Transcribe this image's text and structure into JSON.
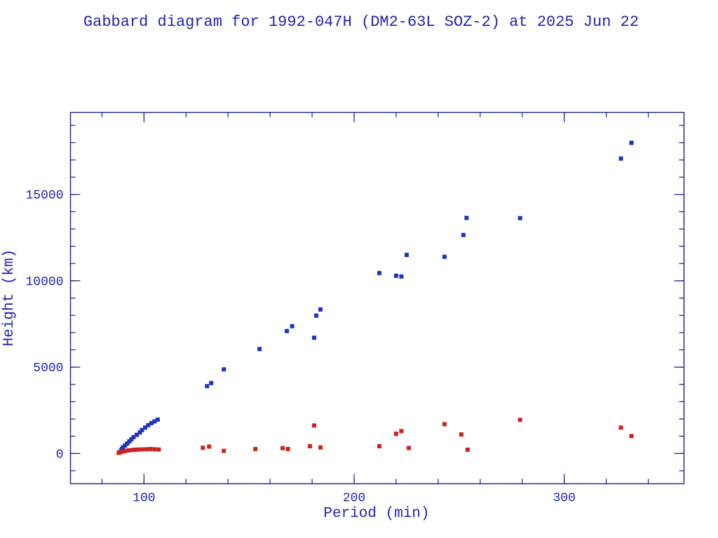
{
  "colors": {
    "background": "#ffffff",
    "text": "#2323ae",
    "axis": "#1a1a8c",
    "apogee": "#2233bb",
    "perigee": "#cc2222"
  },
  "chart_data": {
    "type": "scatter",
    "title": "Gabbard diagram for 1992-047H (DM2-63L SOZ-2) at 2025 Jun 22",
    "xlabel": "Period (min)",
    "ylabel": "Height (km)",
    "xlim": [
      65,
      357
    ],
    "ylim": [
      -1750,
      19750
    ],
    "x_major_ticks": [
      100,
      200,
      300
    ],
    "x_minor_step": 20,
    "y_major_ticks": [
      0,
      5000,
      10000,
      15000
    ],
    "y_minor_step": 1000,
    "grid": false,
    "legend": "none",
    "marker": "square",
    "series": [
      {
        "name": "apogee",
        "color": "#2233bb",
        "points": [
          [
            88,
            60
          ],
          [
            89,
            160
          ],
          [
            89.5,
            260
          ],
          [
            90,
            360
          ],
          [
            91,
            470
          ],
          [
            92,
            580
          ],
          [
            93,
            700
          ],
          [
            94,
            820
          ],
          [
            95,
            950
          ],
          [
            96.5,
            1080
          ],
          [
            98,
            1220
          ],
          [
            99,
            1360
          ],
          [
            100.5,
            1500
          ],
          [
            102,
            1640
          ],
          [
            103.5,
            1760
          ],
          [
            105,
            1860
          ],
          [
            106.5,
            1960
          ],
          [
            130,
            3900
          ],
          [
            132,
            4080
          ],
          [
            138,
            4870
          ],
          [
            155,
            6050
          ],
          [
            168,
            7090
          ],
          [
            170.5,
            7370
          ],
          [
            181,
            6700
          ],
          [
            182,
            7980
          ],
          [
            184,
            8340
          ],
          [
            212,
            10450
          ],
          [
            220,
            10290
          ],
          [
            222.5,
            10250
          ],
          [
            225,
            11500
          ],
          [
            243,
            11390
          ],
          [
            252,
            12650
          ],
          [
            253.5,
            13640
          ],
          [
            279,
            13630
          ],
          [
            327,
            17080
          ],
          [
            332,
            17990
          ]
        ]
      },
      {
        "name": "perigee",
        "color": "#cc2222",
        "points": [
          [
            88,
            40
          ],
          [
            89,
            80
          ],
          [
            90,
            120
          ],
          [
            91,
            150
          ],
          [
            92.5,
            180
          ],
          [
            94,
            200
          ],
          [
            95.5,
            215
          ],
          [
            97,
            225
          ],
          [
            99,
            235
          ],
          [
            101,
            245
          ],
          [
            103,
            255
          ],
          [
            105,
            245
          ],
          [
            107,
            230
          ],
          [
            128,
            330
          ],
          [
            131,
            400
          ],
          [
            138,
            150
          ],
          [
            153,
            260
          ],
          [
            166,
            310
          ],
          [
            168.5,
            260
          ],
          [
            179,
            420
          ],
          [
            181,
            1620
          ],
          [
            184,
            350
          ],
          [
            212,
            420
          ],
          [
            220,
            1140
          ],
          [
            222.5,
            1300
          ],
          [
            226,
            320
          ],
          [
            243,
            1700
          ],
          [
            251,
            1100
          ],
          [
            254,
            220
          ],
          [
            279,
            1950
          ],
          [
            327,
            1500
          ],
          [
            332,
            1010
          ]
        ]
      }
    ]
  }
}
